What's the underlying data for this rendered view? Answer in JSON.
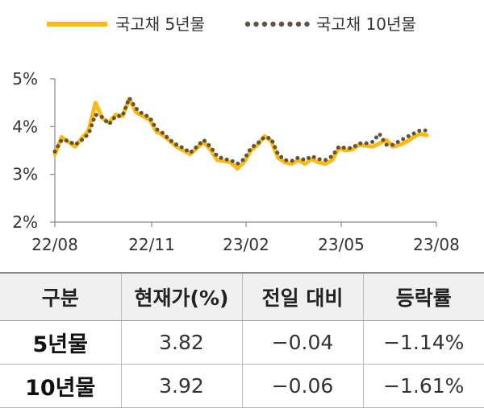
{
  "chart_data": {
    "type": "line",
    "ylim": [
      2,
      5
    ],
    "y_ticks": [
      "2%",
      "3%",
      "4%",
      "5%"
    ],
    "x_ticks": [
      "22/08",
      "22/11",
      "23/02",
      "23/05",
      "23/08"
    ],
    "grid": false,
    "legend_position": "top",
    "series": [
      {
        "name": "국고채 5년물",
        "style": "solid",
        "color": "#FDBA12",
        "x": [
          "22/08/01",
          "22/08/08",
          "22/08/15",
          "22/08/22",
          "22/08/29",
          "22/09/05",
          "22/09/12",
          "22/09/19",
          "22/09/26",
          "22/10/03",
          "22/10/10",
          "22/10/17",
          "22/10/24",
          "22/10/31",
          "22/11/07",
          "22/11/14",
          "22/11/21",
          "22/11/28",
          "22/12/05",
          "22/12/12",
          "22/12/19",
          "22/12/26",
          "23/01/02",
          "23/01/09",
          "23/01/16",
          "23/01/23",
          "23/01/30",
          "23/02/06",
          "23/02/13",
          "23/02/20",
          "23/02/27",
          "23/03/06",
          "23/03/13",
          "23/03/20",
          "23/03/27",
          "23/04/03",
          "23/04/10",
          "23/04/17",
          "23/04/24",
          "23/05/01",
          "23/05/08",
          "23/05/15",
          "23/05/22",
          "23/05/29",
          "23/06/05",
          "23/06/12",
          "23/06/19",
          "23/06/26",
          "23/07/03",
          "23/07/10",
          "23/07/17",
          "23/07/24",
          "23/07/31",
          "23/08/07",
          "23/08/14",
          "23/08/21"
        ],
        "values": [
          3.42,
          3.78,
          3.68,
          3.58,
          3.76,
          3.92,
          4.5,
          4.18,
          4.08,
          4.25,
          4.22,
          4.58,
          4.3,
          4.22,
          4.15,
          3.9,
          3.82,
          3.7,
          3.58,
          3.5,
          3.42,
          3.55,
          3.68,
          3.52,
          3.3,
          3.28,
          3.25,
          3.12,
          3.26,
          3.5,
          3.62,
          3.8,
          3.7,
          3.35,
          3.25,
          3.22,
          3.3,
          3.22,
          3.32,
          3.25,
          3.22,
          3.3,
          3.55,
          3.5,
          3.52,
          3.62,
          3.6,
          3.58,
          3.65,
          3.72,
          3.58,
          3.62,
          3.68,
          3.78,
          3.85,
          3.82
        ]
      },
      {
        "name": "국고채 10년물",
        "style": "dotted",
        "color": "#5B5443",
        "x": [
          "22/08/01",
          "22/08/08",
          "22/08/15",
          "22/08/22",
          "22/08/29",
          "22/09/05",
          "22/09/12",
          "22/09/19",
          "22/09/26",
          "22/10/03",
          "22/10/10",
          "22/10/17",
          "22/10/24",
          "22/10/31",
          "22/11/07",
          "22/11/14",
          "22/11/21",
          "22/11/28",
          "22/12/05",
          "22/12/12",
          "22/12/19",
          "22/12/26",
          "23/01/02",
          "23/01/09",
          "23/01/16",
          "23/01/23",
          "23/01/30",
          "23/02/06",
          "23/02/13",
          "23/02/20",
          "23/02/27",
          "23/03/06",
          "23/03/13",
          "23/03/20",
          "23/03/27",
          "23/04/03",
          "23/04/10",
          "23/04/17",
          "23/04/24",
          "23/05/01",
          "23/05/08",
          "23/05/15",
          "23/05/22",
          "23/05/29",
          "23/06/05",
          "23/06/12",
          "23/06/19",
          "23/06/26",
          "23/07/03",
          "23/07/10",
          "23/07/17",
          "23/07/24",
          "23/07/31",
          "23/08/07",
          "23/08/14",
          "23/08/21"
        ],
        "values": [
          3.48,
          3.72,
          3.7,
          3.62,
          3.72,
          3.85,
          4.25,
          4.2,
          4.05,
          4.22,
          4.22,
          4.6,
          4.38,
          4.26,
          4.2,
          3.95,
          3.86,
          3.72,
          3.62,
          3.55,
          3.45,
          3.58,
          3.72,
          3.58,
          3.38,
          3.32,
          3.3,
          3.22,
          3.32,
          3.55,
          3.65,
          3.78,
          3.75,
          3.42,
          3.3,
          3.28,
          3.35,
          3.3,
          3.38,
          3.32,
          3.3,
          3.38,
          3.58,
          3.55,
          3.55,
          3.65,
          3.65,
          3.68,
          3.85,
          3.62,
          3.62,
          3.7,
          3.78,
          3.85,
          3.92,
          3.92
        ]
      }
    ]
  },
  "table": {
    "headers": [
      "구분",
      "현재가(%)",
      "전일 대비",
      "등락률"
    ],
    "rows": [
      {
        "label": "5년물",
        "price": "3.82",
        "change": "−0.04",
        "rate": "−1.14%"
      },
      {
        "label": "10년물",
        "price": "3.92",
        "change": "−0.06",
        "rate": "−1.61%"
      }
    ]
  }
}
